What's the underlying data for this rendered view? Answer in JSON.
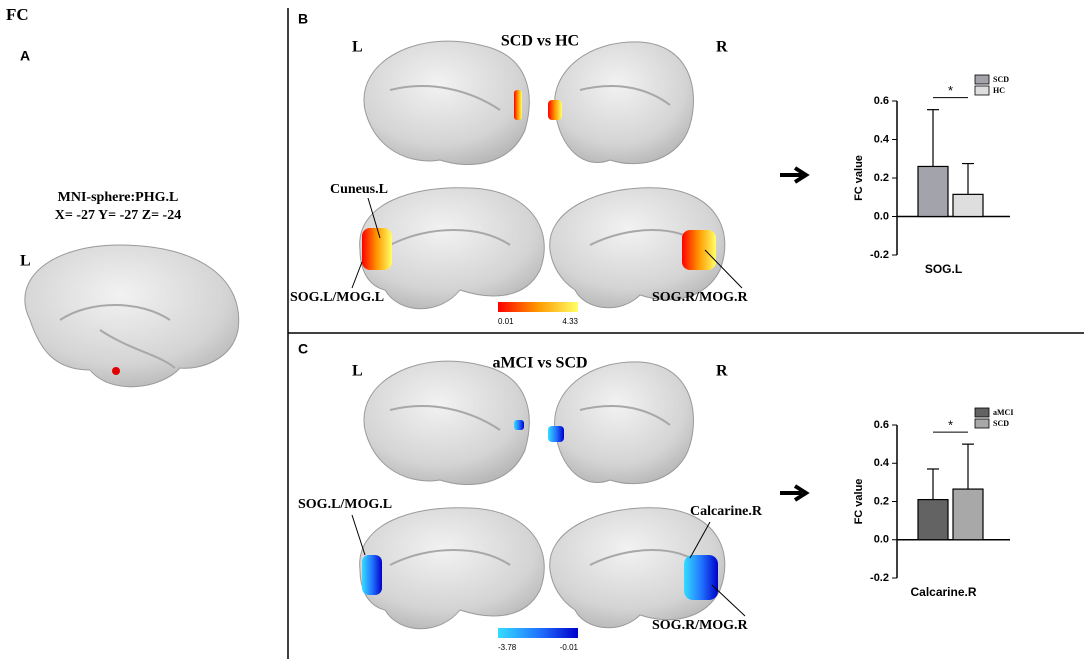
{
  "figure": {
    "title": "FC",
    "panel_a": {
      "label": "A",
      "sphere": "MNI-sphere:PHG.L",
      "coords": "X= -27 Y= -27 Z= -24",
      "hemisphere": "L"
    },
    "panel_b": {
      "label": "B",
      "title": "SCD vs HC",
      "left": "L",
      "right": "R",
      "regions": [
        "Cuneus.L",
        "SOG.L/MOG.L",
        "SOG.R/MOG.R"
      ],
      "colorbar": [
        0.01,
        4.33
      ]
    },
    "panel_c": {
      "label": "C",
      "title": "aMCI vs SCD",
      "left": "L",
      "right": "R",
      "regions": [
        "SOG.L/MOG.L",
        "Calcarine.R",
        "SOG.R/MOG.R"
      ],
      "colorbar": [
        -3.78,
        -0.01
      ]
    }
  },
  "chart_data": [
    {
      "type": "bar",
      "y_label": "FC value",
      "categories": [
        "SOG.L"
      ],
      "annotation": "*",
      "series": [
        {
          "name": "SCD",
          "color": "#a3a3ab",
          "values": [
            0.26
          ],
          "errors": [
            0.295
          ]
        },
        {
          "name": "HC",
          "color": "#dedede",
          "values": [
            0.115
          ],
          "errors": [
            0.16
          ]
        }
      ],
      "ylim": [
        -0.2,
        0.6
      ],
      "yticks": [
        -0.2,
        {
          "value": 0,
          "label": "0.0"
        },
        0.2,
        0.4,
        0.6
      ]
    },
    {
      "type": "bar",
      "y_label": "FC value",
      "categories": [
        "Calcarine.R"
      ],
      "annotation": "*",
      "series": [
        {
          "name": "aMCI",
          "color": "#636363",
          "values": [
            0.21
          ],
          "errors": [
            0.16
          ]
        },
        {
          "name": "SCD",
          "color": "#a8a8a8",
          "values": [
            0.265
          ],
          "errors": [
            0.235
          ]
        }
      ],
      "ylim": [
        -0.2,
        0.6
      ],
      "yticks": [
        -0.2,
        {
          "value": 0,
          "label": "0.0"
        },
        0.2,
        0.4,
        0.6
      ]
    }
  ]
}
